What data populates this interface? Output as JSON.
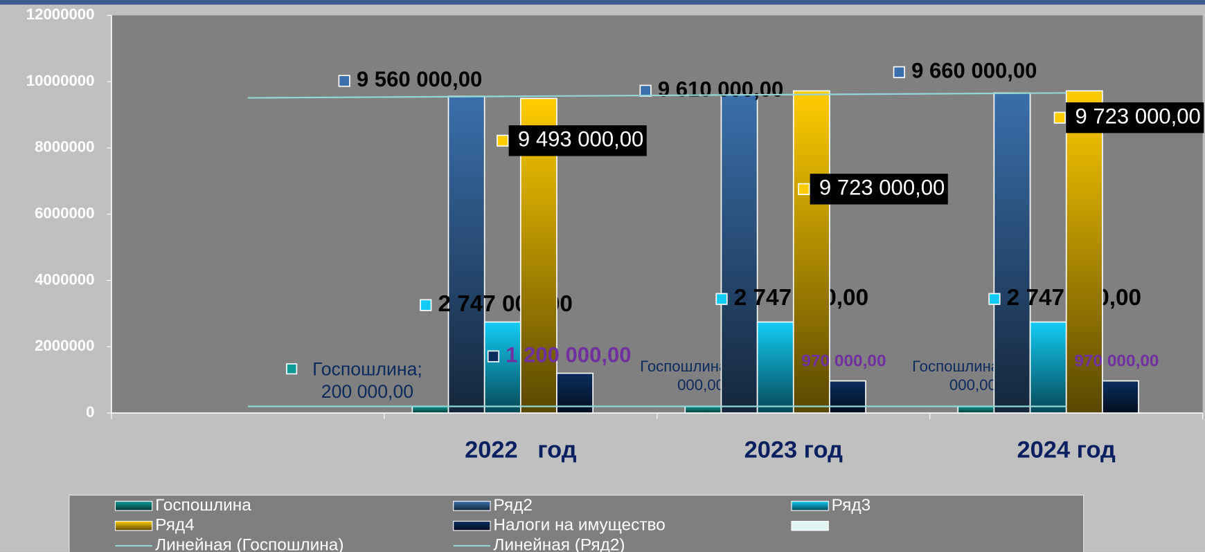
{
  "chart_data": {
    "type": "bar",
    "categories": [
      null,
      "2022   год",
      "2023 год",
      "2024 год"
    ],
    "ylim": [
      0,
      12000000
    ],
    "yticks": [
      0,
      2000000,
      4000000,
      6000000,
      8000000,
      10000000,
      12000000
    ],
    "legend": "bottom",
    "series": [
      {
        "name": "Госпошлина",
        "color": "#0e9a96",
        "values": [
          null,
          200000,
          200000,
          200000
        ],
        "value_labels": [
          null,
          "Госпошлина; 200 000,00",
          "Госпошлина; 200 000,00",
          "Госпошлина; 200 000,00"
        ]
      },
      {
        "name": "Ряд2",
        "color": "#3a6fab",
        "values": [
          null,
          9560000,
          9610000,
          9660000
        ],
        "value_labels": [
          null,
          "9 560 000,00",
          "9 610 000,00",
          "9 660 000,00"
        ]
      },
      {
        "name": "Ряд3",
        "color": "#12ccf5",
        "values": [
          null,
          2747000,
          2747000,
          2747000
        ],
        "value_labels": [
          null,
          "2 747 000,00",
          "2 747 000,00",
          "2 747 000,00"
        ]
      },
      {
        "name": "Ряд4",
        "color": "#ffcc00",
        "values": [
          null,
          9493000,
          9723000,
          9723000
        ],
        "value_labels": [
          null,
          "9 493 000,00",
          "9 723 000,00",
          "9 723 000,00"
        ]
      },
      {
        "name": "Налоги на имущество",
        "color": "#0b2d5e",
        "values": [
          null,
          1200000,
          970000,
          970000
        ],
        "value_labels": [
          null,
          "1 200 000,00",
          "970 000,00",
          "970 000,00"
        ]
      },
      {
        "name": "Линейная (Госпошлина)",
        "type": "line",
        "color": "#93d6d6",
        "values": [
          200000,
          200000,
          200000,
          200000
        ]
      },
      {
        "name": "Линейная (Ряд2)",
        "type": "line",
        "color": "#93d6d6",
        "values": [
          9510000,
          9560000,
          9610000,
          9660000
        ]
      }
    ]
  }
}
